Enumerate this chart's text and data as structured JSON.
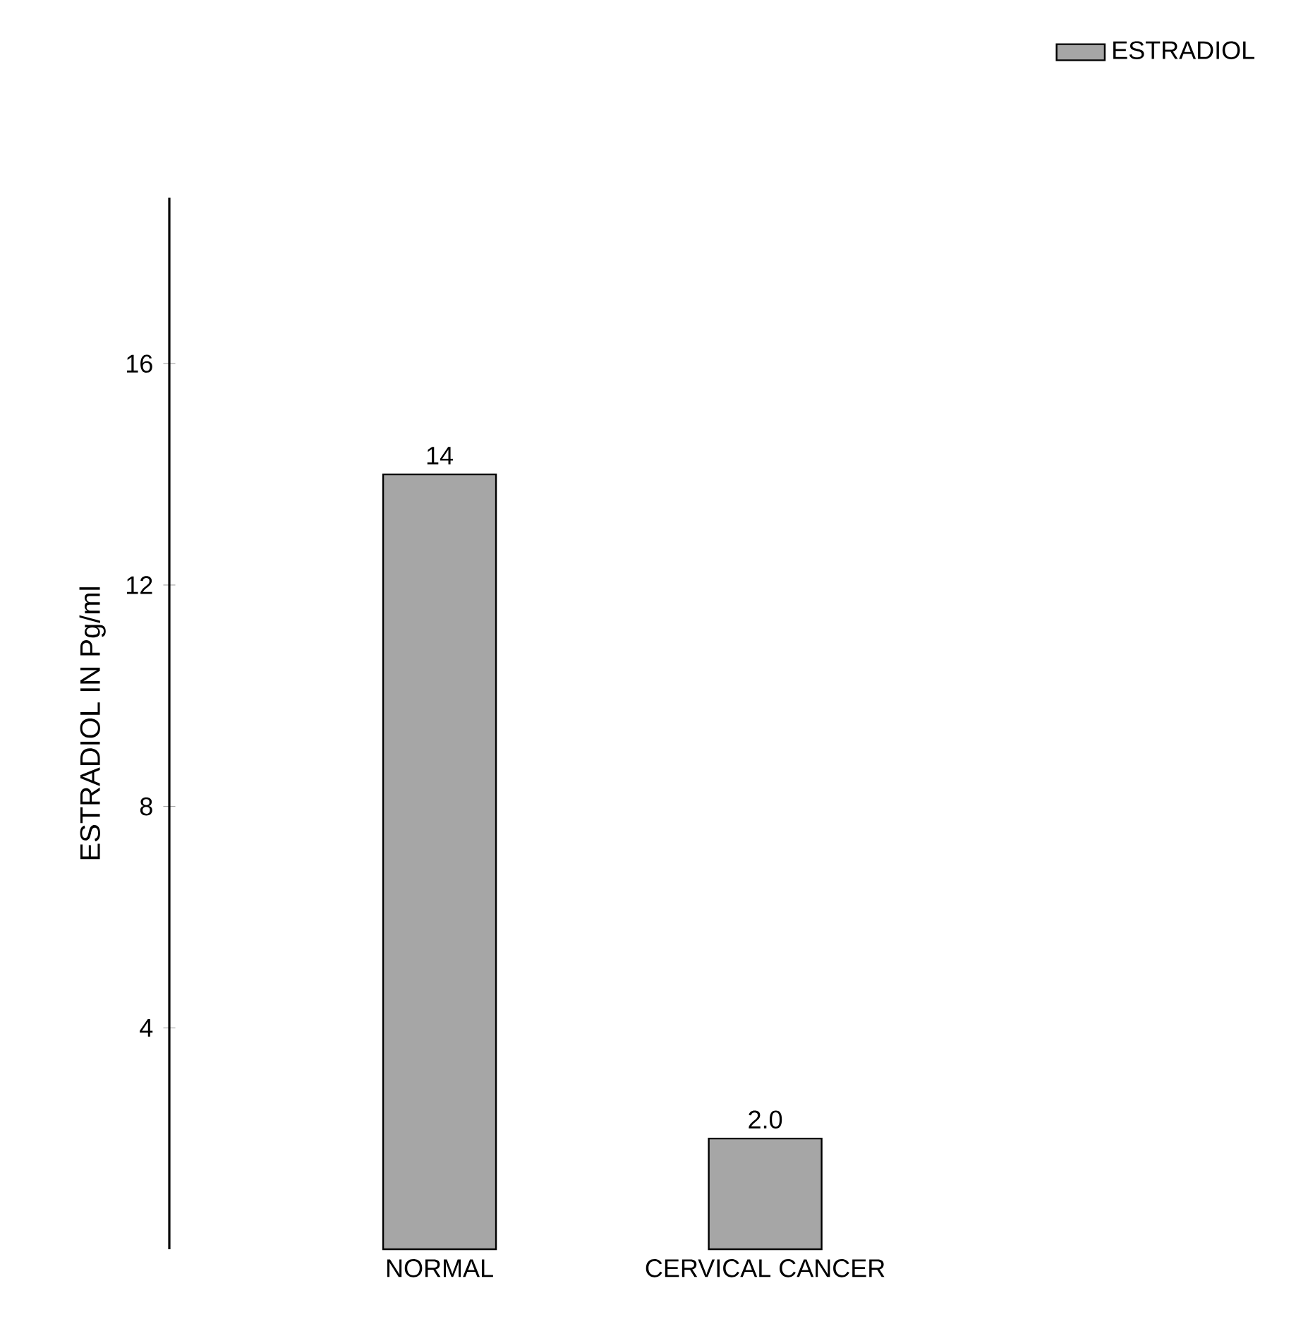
{
  "chart_data": {
    "type": "bar",
    "ylabel": "ESTRADIOL IN Pg/ml",
    "categories": [
      "NORMAL",
      "CERVICAL CANCER"
    ],
    "series": [
      {
        "name": "ESTRADIOL",
        "color": "#a6a6a6",
        "values": [
          14,
          2.0
        ]
      }
    ],
    "value_labels": [
      "14",
      "2.0"
    ],
    "ylim": [
      0,
      19
    ],
    "yticks": [
      4,
      8,
      12,
      16
    ],
    "legend": "top right"
  }
}
